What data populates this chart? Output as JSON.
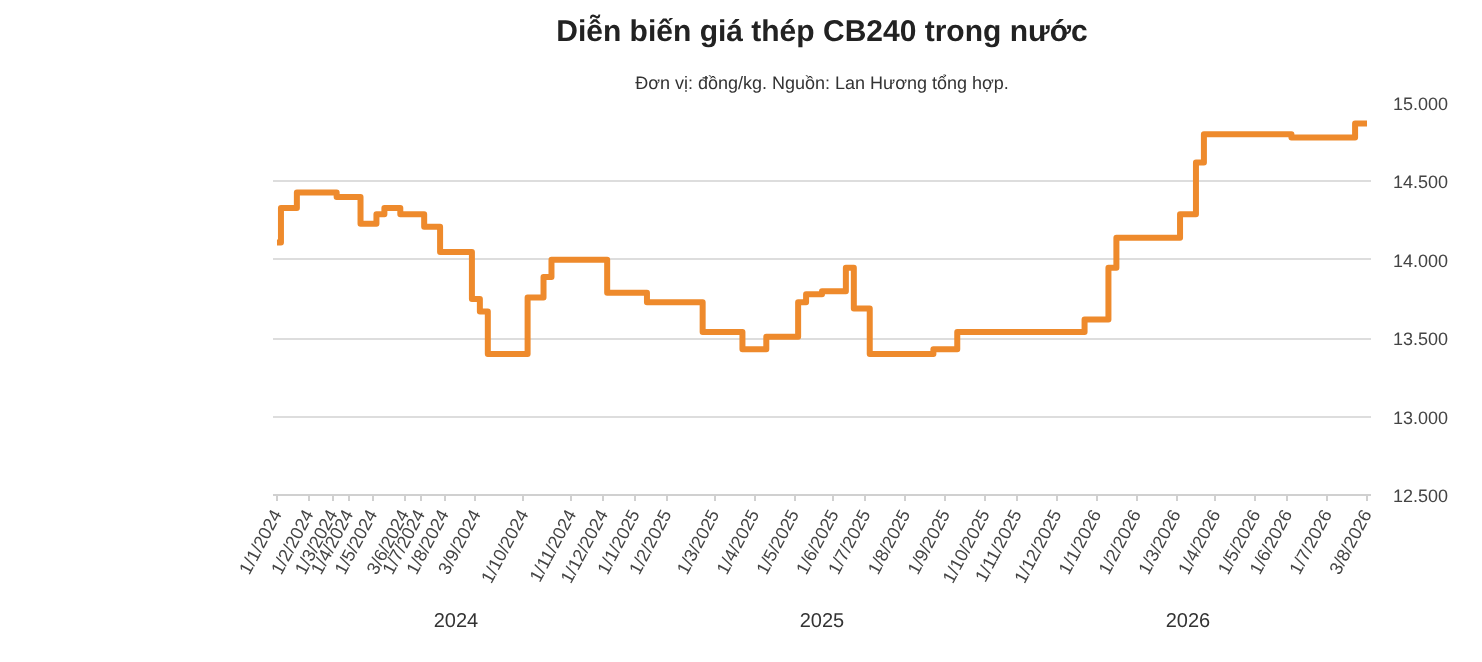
{
  "chart_data": {
    "type": "step",
    "title": "Diễn biến giá thép CB240 trong nước",
    "subtitle": "Đơn vị: đồng/kg. Nguồn: Lan Hương tổng hợp.",
    "categories": [
      "1/1/2024",
      null,
      null,
      null,
      "1/2/2024",
      null,
      null,
      "1/3/2024",
      null,
      "1/4/2024",
      null,
      null,
      "1/5/2024",
      null,
      null,
      null,
      "3/6/2024",
      null,
      "1/7/2024",
      null,
      null,
      "1/8/2024",
      null,
      null,
      null,
      "3/9/2024",
      null,
      null,
      null,
      null,
      null,
      "1/10/2024",
      null,
      null,
      null,
      null,
      null,
      "1/11/2024",
      null,
      null,
      null,
      "1/12/2024",
      null,
      null,
      null,
      "1/1/2025",
      null,
      null,
      null,
      "1/2/2025",
      null,
      null,
      null,
      null,
      null,
      "1/3/2025",
      null,
      null,
      null,
      null,
      "1/4/2025",
      null,
      null,
      null,
      null,
      "1/5/2025",
      null,
      null,
      null,
      null,
      "1/6/2025",
      null,
      null,
      null,
      "1/7/2025",
      null,
      null,
      null,
      null,
      "1/8/2025",
      null,
      null,
      null,
      null,
      "1/9/2025",
      null,
      null,
      null,
      null,
      "1/10/2025",
      null,
      null,
      null,
      "1/11/2025",
      null,
      null,
      null,
      null,
      "1/12/2025",
      null,
      null,
      null,
      null,
      "1/1/2026",
      null,
      null,
      null,
      null,
      "1/2/2026",
      null,
      null,
      null,
      null,
      "1/3/2026",
      null,
      null,
      null,
      null,
      "1/4/2026",
      null,
      null,
      null,
      null,
      "1/5/2026",
      null,
      null,
      null,
      "1/6/2026",
      null,
      null,
      null,
      null,
      "1/7/2026",
      null,
      null,
      null,
      null,
      "3/8/2026"
    ],
    "series": [
      {
        "color": "#ee8a2c",
        "values": [
          14110,
          14330,
          14330,
          14430,
          14430,
          14430,
          14430,
          14430,
          14400,
          14400,
          14400,
          14230,
          14230,
          14290,
          14330,
          14330,
          14290,
          14290,
          14290,
          14210,
          14210,
          14050,
          14050,
          14050,
          14050,
          13750,
          13670,
          13400,
          13400,
          13400,
          13400,
          13400,
          13760,
          13760,
          13890,
          14000,
          14000,
          14000,
          14000,
          14000,
          14000,
          14000,
          13790,
          13790,
          13790,
          13790,
          13790,
          13730,
          13730,
          13730,
          13730,
          13730,
          13730,
          13730,
          13540,
          13540,
          13540,
          13540,
          13540,
          13430,
          13430,
          13430,
          13510,
          13510,
          13510,
          13510,
          13730,
          13780,
          13780,
          13800,
          13800,
          13800,
          13950,
          13690,
          13690,
          13400,
          13400,
          13400,
          13400,
          13400,
          13400,
          13400,
          13400,
          13430,
          13430,
          13430,
          13540,
          13540,
          13540,
          13540,
          13540,
          13540,
          13540,
          13540,
          13540,
          13540,
          13540,
          13540,
          13540,
          13540,
          13540,
          13540,
          13620,
          13620,
          13620,
          13950,
          14140,
          14140,
          14140,
          14140,
          14140,
          14140,
          14140,
          14140,
          14290,
          14290,
          14620,
          14800,
          14800,
          14800,
          14800,
          14800,
          14800,
          14800,
          14800,
          14800,
          14800,
          14800,
          14780,
          14780,
          14780,
          14780,
          14780,
          14780,
          14780,
          14780,
          14870,
          14870
        ]
      }
    ],
    "ylim": [
      12500,
      15000
    ],
    "yticks": [
      {
        "value": 12500,
        "label": "12.500"
      },
      {
        "value": 13000,
        "label": "13.000"
      },
      {
        "value": 13500,
        "label": "13.500"
      },
      {
        "value": 14000,
        "label": "14.000"
      },
      {
        "value": 14500,
        "label": "14.500"
      },
      {
        "value": 15000,
        "label": "15.000"
      }
    ],
    "annotations": [
      "2024",
      "2025",
      "2026"
    ],
    "grid": "y",
    "marker": "none",
    "line_style": "solid"
  }
}
